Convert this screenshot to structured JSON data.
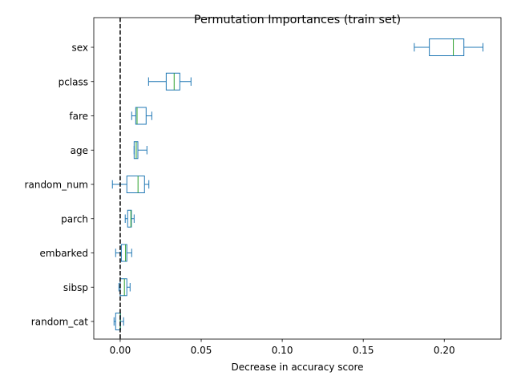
{
  "chart_data": {
    "type": "boxplot",
    "orientation": "horizontal",
    "title": "Permutation Importances (train set)",
    "xlabel": "Decrease in accuracy score",
    "ylabel": "",
    "xlim": [
      -0.0163,
      0.235
    ],
    "xticks": [
      0.0,
      0.05,
      0.1,
      0.15,
      0.2
    ],
    "xtick_labels": [
      "0.00",
      "0.05",
      "0.10",
      "0.15",
      "0.20"
    ],
    "reference_line": {
      "x": 0,
      "style": "dashed",
      "color": "#000000"
    },
    "box_color": "#1f77b4",
    "median_color": "#2ca02c",
    "grid": false,
    "categories": [
      "sex",
      "pclass",
      "fare",
      "age",
      "random_num",
      "parch",
      "embarked",
      "sibsp",
      "random_cat"
    ],
    "boxes": [
      {
        "label": "sex",
        "whislo": 0.1815,
        "q1": 0.1908,
        "med": 0.2056,
        "q3": 0.2121,
        "whishi": 0.2239
      },
      {
        "label": "pclass",
        "whislo": 0.0175,
        "q1": 0.0284,
        "med": 0.0333,
        "q3": 0.0368,
        "whishi": 0.0437
      },
      {
        "label": "fare",
        "whislo": 0.0071,
        "q1": 0.0096,
        "med": 0.0104,
        "q3": 0.016,
        "whishi": 0.0195
      },
      {
        "label": "age",
        "whislo": 0.0086,
        "q1": 0.0086,
        "med": 0.0099,
        "q3": 0.0109,
        "whishi": 0.0165
      },
      {
        "label": "random_num",
        "whislo": -0.0048,
        "q1": 0.0041,
        "med": 0.011,
        "q3": 0.015,
        "whishi": 0.0177
      },
      {
        "label": "parch",
        "whislo": 0.0031,
        "q1": 0.0046,
        "med": 0.0066,
        "q3": 0.0069,
        "whishi": 0.0086
      },
      {
        "label": "embarked",
        "whislo": -0.0028,
        "q1": 0.0007,
        "med": 0.0033,
        "q3": 0.0041,
        "whishi": 0.0071
      },
      {
        "label": "sibsp",
        "whislo": -0.0008,
        "q1": 0.0,
        "med": 0.0026,
        "q3": 0.0041,
        "whishi": 0.0061
      },
      {
        "label": "random_cat",
        "whislo": -0.0038,
        "q1": -0.0028,
        "med": 0.0,
        "q3": 0.0002,
        "whishi": 0.0021
      }
    ]
  }
}
